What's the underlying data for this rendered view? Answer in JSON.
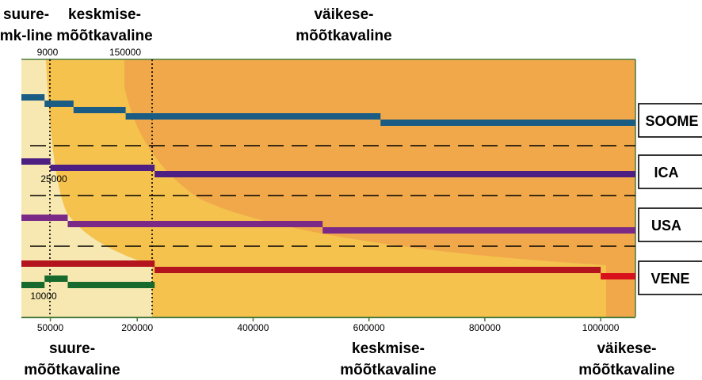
{
  "chart_data": {
    "type": "line",
    "colors": {
      "band_large": "#f6e8b0",
      "band_medium": "#f5c24e",
      "band_small": "#f0a84a",
      "axis": "#4a7a3a",
      "soome": "#1a5c84",
      "ica": "#4d1f82",
      "usa": "#7a2a86",
      "vene": "#b3141e",
      "vene_small": "#d8101c",
      "green": "#17692c",
      "divider": "#000000"
    },
    "top_labels": {
      "large_line1": "suure-",
      "large_line2": "mk-line",
      "medium_line1": "keskmise-",
      "medium_line2": "mõõtkavaline",
      "small_line1": "väikese-",
      "small_line2": "mõõtkavaline",
      "scale_9000": "9000",
      "scale_150000": "150000"
    },
    "bottom_labels": {
      "large_line1": "suure-",
      "large_line2": "mõõtkavaline",
      "medium_line1": "keskmise-",
      "medium_line2": "mõõtkavaline",
      "small_line1": "väikese-",
      "small_line2": "mõõtkavaline"
    },
    "inline_labels": {
      "l25000": "25000",
      "l10000": "10000"
    },
    "x_ticks": [
      50000,
      200000,
      400000,
      600000,
      800000,
      1000000
    ],
    "x_tick_labels": [
      "50000",
      "200000",
      "400000",
      "600000",
      "800000",
      "1000000"
    ],
    "xlim": [
      0,
      1060000
    ],
    "region_boundaries": [
      9000,
      150000,
      200000,
      1000000
    ],
    "series": [
      {
        "name": "SOOME",
        "steps": [
          {
            "from": 0,
            "to": 40000,
            "level": 0
          },
          {
            "from": 40000,
            "to": 90000,
            "level": 1
          },
          {
            "from": 90000,
            "to": 180000,
            "level": 2
          },
          {
            "from": 180000,
            "to": 620000,
            "level": 3
          },
          {
            "from": 620000,
            "to": 1060000,
            "level": 4
          }
        ]
      },
      {
        "name": "ICA",
        "steps": [
          {
            "from": 0,
            "to": 50000,
            "level": 0
          },
          {
            "from": 50000,
            "to": 230000,
            "level": 1
          },
          {
            "from": 230000,
            "to": 1060000,
            "level": 2
          }
        ]
      },
      {
        "name": "USA",
        "steps": [
          {
            "from": 0,
            "to": 80000,
            "level": 0
          },
          {
            "from": 80000,
            "to": 520000,
            "level": 1
          },
          {
            "from": 520000,
            "to": 1060000,
            "level": 2
          }
        ]
      },
      {
        "name": "VENE",
        "steps": [
          {
            "from": 0,
            "to": 230000,
            "level": 0
          },
          {
            "from": 230000,
            "to": 1000000,
            "level": 1
          },
          {
            "from": 1000000,
            "to": 1060000,
            "level": 2
          }
        ]
      },
      {
        "name": "",
        "steps": [
          {
            "from": 0,
            "to": 40000,
            "level": 0
          },
          {
            "from": 40000,
            "to": 80000,
            "level": 1
          },
          {
            "from": 80000,
            "to": 230000,
            "level": 2
          }
        ]
      }
    ]
  }
}
